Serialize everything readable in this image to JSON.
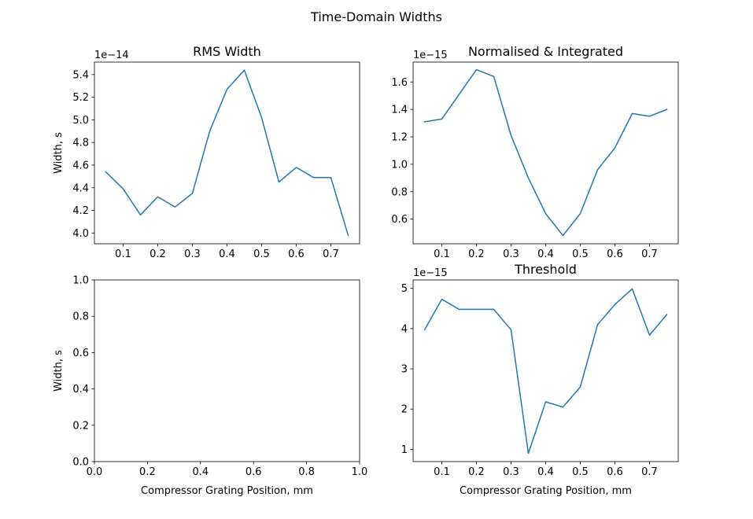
{
  "figure": {
    "suptitle": "Time-Domain Widths"
  },
  "chart_data": [
    {
      "type": "line",
      "title": "RMS Width",
      "xlabel": "",
      "ylabel": "Width, s",
      "offset_text": "1e−14",
      "xlim": [
        0.017,
        0.783
      ],
      "ylim": [
        3.905,
        5.51
      ],
      "xticks": [
        0.1,
        0.2,
        0.3,
        0.4,
        0.5,
        0.6,
        0.7
      ],
      "xtick_labels": [
        "0.1",
        "0.2",
        "0.3",
        "0.4",
        "0.5",
        "0.6",
        "0.7"
      ],
      "yticks": [
        4.0,
        4.2,
        4.4,
        4.6,
        4.8,
        5.0,
        5.2,
        5.4
      ],
      "ytick_labels": [
        "4.0",
        "4.2",
        "4.4",
        "4.6",
        "4.8",
        "5.0",
        "5.2",
        "5.4"
      ],
      "color": "#1f77b4",
      "x": [
        0.05,
        0.1,
        0.15,
        0.2,
        0.25,
        0.3,
        0.35,
        0.4,
        0.45,
        0.5,
        0.55,
        0.6,
        0.65,
        0.7,
        0.75
      ],
      "y": [
        4.54,
        4.39,
        4.16,
        4.32,
        4.23,
        4.35,
        4.9,
        5.27,
        5.44,
        5.02,
        4.45,
        4.58,
        4.49,
        4.49,
        3.98
      ]
    },
    {
      "type": "line",
      "title": "Normalised & Integrated",
      "xlabel": "",
      "ylabel": "",
      "offset_text": "1e−15",
      "xlim": [
        0.017,
        0.783
      ],
      "ylim": [
        0.42,
        1.745
      ],
      "xticks": [
        0.1,
        0.2,
        0.3,
        0.4,
        0.5,
        0.6,
        0.7
      ],
      "xtick_labels": [
        "0.1",
        "0.2",
        "0.3",
        "0.4",
        "0.5",
        "0.6",
        "0.7"
      ],
      "yticks": [
        0.6,
        0.8,
        1.0,
        1.2,
        1.4,
        1.6
      ],
      "ytick_labels": [
        "0.6",
        "0.8",
        "1.0",
        "1.2",
        "1.4",
        "1.6"
      ],
      "color": "#1f77b4",
      "x": [
        0.05,
        0.1,
        0.15,
        0.2,
        0.25,
        0.3,
        0.35,
        0.4,
        0.45,
        0.5,
        0.55,
        0.6,
        0.65,
        0.7,
        0.75
      ],
      "y": [
        1.31,
        1.33,
        1.51,
        1.69,
        1.64,
        1.21,
        0.9,
        0.64,
        0.48,
        0.64,
        0.96,
        1.12,
        1.37,
        1.35,
        1.4
      ]
    },
    {
      "type": "line",
      "title": "",
      "xlabel": "Compressor Grating Position, mm",
      "ylabel": "Width, s",
      "offset_text": "",
      "xlim": [
        0.0,
        1.0
      ],
      "ylim": [
        0.0,
        1.0
      ],
      "xticks": [
        0.0,
        0.2,
        0.4,
        0.6,
        0.8,
        1.0
      ],
      "xtick_labels": [
        "0.0",
        "0.2",
        "0.4",
        "0.6",
        "0.8",
        "1.0"
      ],
      "yticks": [
        0.0,
        0.2,
        0.4,
        0.6,
        0.8,
        1.0
      ],
      "ytick_labels": [
        "0.0",
        "0.2",
        "0.4",
        "0.6",
        "0.8",
        "1.0"
      ],
      "color": "#1f77b4",
      "x": [],
      "y": []
    },
    {
      "type": "line",
      "title": "Threshold",
      "xlabel": "Compressor Grating Position, mm",
      "ylabel": "",
      "offset_text": "1e−15",
      "xlim": [
        0.017,
        0.783
      ],
      "ylim": [
        0.695,
        5.21
      ],
      "xticks": [
        0.1,
        0.2,
        0.3,
        0.4,
        0.5,
        0.6,
        0.7
      ],
      "xtick_labels": [
        "0.1",
        "0.2",
        "0.3",
        "0.4",
        "0.5",
        "0.6",
        "0.7"
      ],
      "yticks": [
        1,
        2,
        3,
        4,
        5
      ],
      "ytick_labels": [
        "1",
        "2",
        "3",
        "4",
        "5"
      ],
      "color": "#1f77b4",
      "x": [
        0.05,
        0.1,
        0.15,
        0.2,
        0.25,
        0.3,
        0.35,
        0.4,
        0.45,
        0.5,
        0.55,
        0.6,
        0.65,
        0.7,
        0.75
      ],
      "y": [
        3.97,
        4.73,
        4.48,
        4.48,
        4.48,
        3.97,
        0.9,
        2.18,
        2.05,
        2.55,
        4.1,
        4.6,
        4.99,
        3.84,
        4.35
      ]
    }
  ]
}
